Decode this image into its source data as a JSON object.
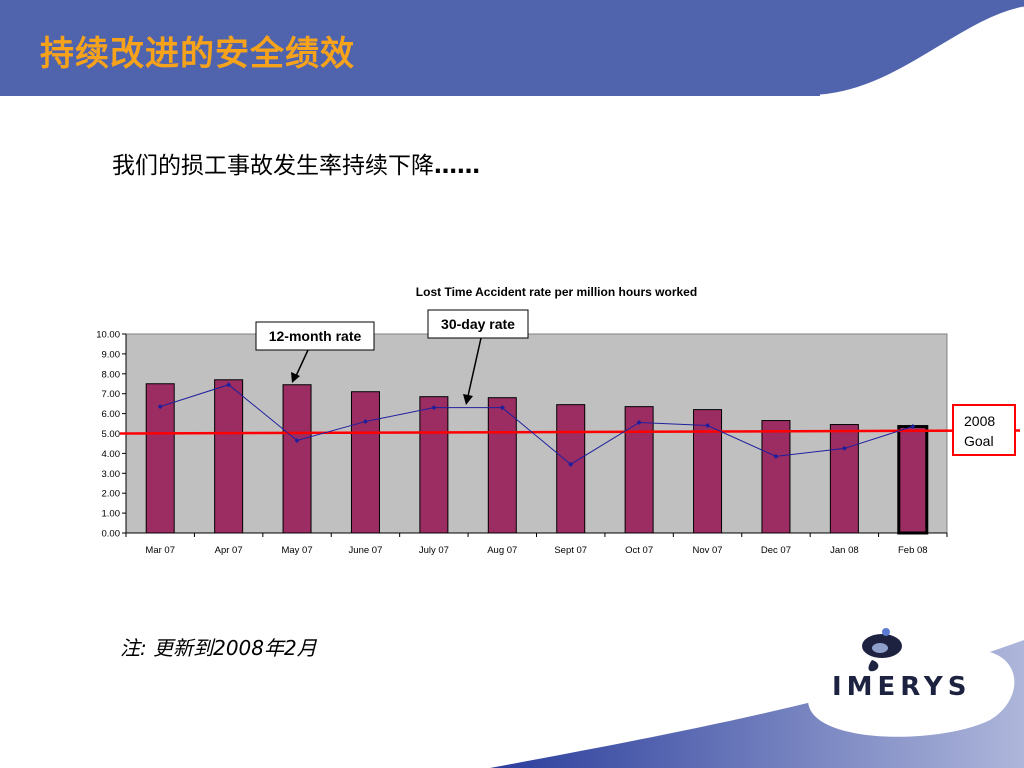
{
  "colors": {
    "header_blue": "#4f64ad",
    "title_orange": "#f7a21b",
    "bar_fill": "#9b2d63",
    "plot_bg": "#c0c0c0",
    "line_color": "#1f1f9e",
    "goal_color": "#ff0000"
  },
  "slide": {
    "title": "持续改进的安全绩效",
    "subtitle": "我们的损工事故发生率持续下降",
    "subtitle_dots": "……",
    "note": "注: 更新到2008年2月",
    "logo": "IMERYS"
  },
  "chart_data": {
    "type": "bar",
    "title": "Lost Time Accident rate per million hours worked",
    "categories": [
      "Mar 07",
      "Apr 07",
      "May 07",
      "June 07",
      "July 07",
      "Aug 07",
      "Sept 07",
      "Oct 07",
      "Nov 07",
      "Dec 07",
      "Jan 08",
      "Feb 08"
    ],
    "series": [
      {
        "name": "12-month rate",
        "kind": "bar",
        "values": [
          7.5,
          7.7,
          7.45,
          7.1,
          6.85,
          6.8,
          6.45,
          6.35,
          6.2,
          5.65,
          5.45,
          5.35
        ]
      },
      {
        "name": "30-day rate",
        "kind": "line",
        "values": [
          6.35,
          7.45,
          4.65,
          5.6,
          6.3,
          6.3,
          3.45,
          5.55,
          5.4,
          3.85,
          4.25,
          5.35
        ]
      }
    ],
    "goal": {
      "value": 5.0,
      "label_line1": "2008",
      "label_line2": "Goal"
    },
    "ylim": [
      0,
      10
    ],
    "yticks": [
      "0.00",
      "1.00",
      "2.00",
      "3.00",
      "4.00",
      "5.00",
      "6.00",
      "7.00",
      "8.00",
      "9.00",
      "10.00"
    ],
    "callouts": {
      "bar_label": "12-month rate",
      "line_label": "30-day rate"
    },
    "legend": "none",
    "grid": false
  }
}
